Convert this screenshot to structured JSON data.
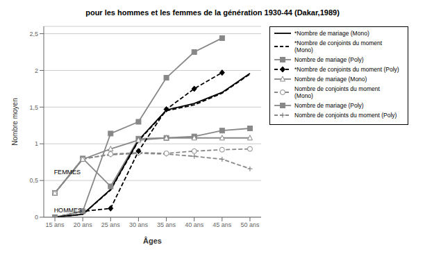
{
  "chart_data": {
    "type": "line",
    "title": "pour les hommes et les femmes de la génération 1930-44 (Dakar,1989)",
    "x_label": "Âges",
    "y_label": "Nombre moyen",
    "x": [
      15,
      20,
      25,
      30,
      35,
      40,
      45,
      50
    ],
    "xlim": [
      13,
      52
    ],
    "xticks": [
      {
        "value": 15,
        "label": "15 ans"
      },
      {
        "value": 20,
        "label": "20 ans"
      },
      {
        "value": 25,
        "label": "25 ans"
      },
      {
        "value": 30,
        "label": "30 ans"
      },
      {
        "value": 35,
        "label": "35 ans"
      },
      {
        "value": 40,
        "label": "40 ans"
      },
      {
        "value": 45,
        "label": "45 ans"
      },
      {
        "value": 50,
        "label": "50 ans"
      }
    ],
    "ylim": [
      0,
      2.6
    ],
    "yticks": [
      0,
      {
        "value": 0.5,
        "label": "0,5"
      },
      1,
      {
        "value": 1.5,
        "label": "1,5"
      },
      2,
      {
        "value": 2.5,
        "label": "2,5"
      }
    ],
    "grid": true,
    "legend": "right",
    "annotations": [
      {
        "text": "FEMMES",
        "x": 14.2,
        "y": 0.62
      },
      {
        "text": "HOMMES",
        "x": 14.2,
        "y": 0.1
      }
    ],
    "series": [
      {
        "name": "*Nombre de mariage (Mono)",
        "color": "#000000",
        "line_style": "solid",
        "marker": "none",
        "values": [
          0.0,
          0.04,
          0.38,
          1.05,
          1.46,
          1.55,
          1.7,
          1.96
        ]
      },
      {
        "name": "*Nombre de conjoints du moment\n(Mono)",
        "color": "#000000",
        "line_style": "dashed",
        "marker": "none",
        "values": [
          0.0,
          0.04,
          0.37,
          1.04,
          1.45,
          1.53,
          1.69,
          1.95
        ]
      },
      {
        "name": "Nombre de mariage (Poly)",
        "color": "#888888",
        "line_style": "solid",
        "marker": "square",
        "values": [
          0.0,
          0.08,
          1.14,
          1.3,
          1.9,
          2.25,
          2.44,
          null
        ]
      },
      {
        "name": "*Nombre de conjoints du moment (Poly)",
        "color": "#000000",
        "line_style": "dashed",
        "marker": "diamond",
        "values": [
          0.0,
          0.08,
          0.12,
          0.9,
          1.47,
          1.75,
          1.97,
          null
        ]
      },
      {
        "name": "Nombre de mariage (Mono)",
        "color": "#888888",
        "line_style": "solid",
        "marker": "triangle",
        "values": [
          0.33,
          0.79,
          0.93,
          1.05,
          1.08,
          1.08,
          1.08,
          1.08
        ]
      },
      {
        "name": "Nombre de conjoints du moment\n(Mono)",
        "color": "#888888",
        "line_style": "dashed",
        "marker": "circle",
        "values": [
          0.33,
          0.79,
          0.86,
          0.88,
          0.87,
          0.9,
          0.92,
          0.93
        ]
      },
      {
        "name": "Nombre de mariage (Poly)",
        "color": "#888888",
        "line_style": "solid",
        "marker": "square",
        "values": [
          0.33,
          0.8,
          0.42,
          1.07,
          1.08,
          1.1,
          1.18,
          1.21
        ]
      },
      {
        "name": "Nombre de conjoints du moment (Poly)",
        "color": "#888888",
        "line_style": "dashed",
        "marker": "plus",
        "values": [
          0.33,
          0.8,
          0.85,
          0.87,
          0.86,
          0.83,
          0.79,
          0.66
        ]
      }
    ]
  }
}
